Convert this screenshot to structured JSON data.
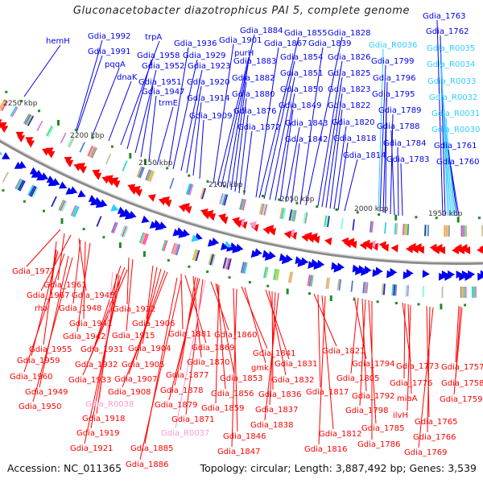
{
  "title": "Gluconacetobacter diazotrophicus PAI 5, complete genome",
  "footer": {
    "accession": "Accession: NC_011365",
    "summary": "Topology: circular; Length: 3,887,492 bp; Genes: 3,539"
  },
  "colors": {
    "forward_gene": "#0000ee",
    "reverse_gene": "#ff0000",
    "rna_forward": "#33ccff",
    "rna_reverse": "#ff99cc",
    "backbone": "#888888",
    "tick_dot": "#228b22"
  },
  "ticks": [
    {
      "kbp": 2250,
      "label": "2250 kbp"
    },
    {
      "kbp": 2200,
      "label": "2200 kbp"
    },
    {
      "kbp": 2150,
      "label": "2150 kbp"
    },
    {
      "kbp": 2100,
      "label": "2100 kbp"
    },
    {
      "kbp": 2050,
      "label": "2050 kbp"
    },
    {
      "kbp": 2000,
      "label": "2000 kbp"
    },
    {
      "kbp": 1950,
      "label": "1950 kbp"
    }
  ],
  "forward_labels": [
    {
      "text": "hemH",
      "type": "gene"
    },
    {
      "text": "Gdia_1992",
      "type": "gene"
    },
    {
      "text": "Gdia_1991",
      "type": "gene"
    },
    {
      "text": "pqqA",
      "type": "gene"
    },
    {
      "text": "dnaK",
      "type": "gene"
    },
    {
      "text": "trpA",
      "type": "gene"
    },
    {
      "text": "Gdia_1958",
      "type": "gene"
    },
    {
      "text": "Gdia_1952",
      "type": "gene"
    },
    {
      "text": "Gdia_1951",
      "type": "gene"
    },
    {
      "text": "Gdia_1947",
      "type": "gene"
    },
    {
      "text": "trmE",
      "type": "gene"
    },
    {
      "text": "Gdia_1936",
      "type": "gene"
    },
    {
      "text": "Gdia_1929",
      "type": "gene"
    },
    {
      "text": "Gdia_1923",
      "type": "gene"
    },
    {
      "text": "Gdia_1920",
      "type": "gene"
    },
    {
      "text": "Gdia_1914",
      "type": "gene"
    },
    {
      "text": "Gdia_1909",
      "type": "gene"
    },
    {
      "text": "Gdia_1901",
      "type": "gene"
    },
    {
      "text": "purH",
      "type": "gene"
    },
    {
      "text": "Gdia_1884",
      "type": "gene"
    },
    {
      "text": "Gdia_1883",
      "type": "gene"
    },
    {
      "text": "Gdia_1882",
      "type": "gene"
    },
    {
      "text": "Gdia_1880",
      "type": "gene"
    },
    {
      "text": "Gdia_1876",
      "type": "gene"
    },
    {
      "text": "Gdia_1872",
      "type": "gene"
    },
    {
      "text": "Gdia_1867",
      "type": "gene"
    },
    {
      "text": "Gdia_1855",
      "type": "gene"
    },
    {
      "text": "Gdia_1854",
      "type": "gene"
    },
    {
      "text": "Gdia_1851",
      "type": "gene"
    },
    {
      "text": "Gdia_1850",
      "type": "gene"
    },
    {
      "text": "Gdia_1849",
      "type": "gene"
    },
    {
      "text": "Gdia_1843",
      "type": "gene"
    },
    {
      "text": "Gdia_1842",
      "type": "gene"
    },
    {
      "text": "Gdia_1828",
      "type": "gene"
    },
    {
      "text": "Gdia_1839",
      "type": "gene"
    },
    {
      "text": "Gdia_1826",
      "type": "gene"
    },
    {
      "text": "Gdia_1825",
      "type": "gene"
    },
    {
      "text": "Gdia_1823",
      "type": "gene"
    },
    {
      "text": "Gdia_1822",
      "type": "gene"
    },
    {
      "text": "Gdia_1820",
      "type": "gene"
    },
    {
      "text": "Gdia_1818",
      "type": "gene"
    },
    {
      "text": "Gdia_1814",
      "type": "gene"
    },
    {
      "text": "Gdia_R0036",
      "type": "rna"
    },
    {
      "text": "Gdia_1799",
      "type": "gene"
    },
    {
      "text": "Gdia_1796",
      "type": "gene"
    },
    {
      "text": "Gdia_1795",
      "type": "gene"
    },
    {
      "text": "Gdia_1789",
      "type": "gene"
    },
    {
      "text": "Gdia_1788",
      "type": "gene"
    },
    {
      "text": "Gdia_1784",
      "type": "gene"
    },
    {
      "text": "Gdia_1783",
      "type": "gene"
    },
    {
      "text": "Gdia_1763",
      "type": "gene"
    },
    {
      "text": "Gdia_1762",
      "type": "gene"
    },
    {
      "text": "Gdia_R0035",
      "type": "rna"
    },
    {
      "text": "Gdia_R0034",
      "type": "rna"
    },
    {
      "text": "Gdia_R0033",
      "type": "rna"
    },
    {
      "text": "Gdia_R0032",
      "type": "rna"
    },
    {
      "text": "Gdia_R0031",
      "type": "rna"
    },
    {
      "text": "Gdia_R0030",
      "type": "rna"
    },
    {
      "text": "Gdia_1761",
      "type": "gene"
    },
    {
      "text": "Gdia_1760",
      "type": "gene"
    }
  ],
  "reverse_labels": [
    {
      "text": "Gdia_1977",
      "type": "gene"
    },
    {
      "text": "Gdia_1961",
      "type": "gene"
    },
    {
      "text": "Gdia_1967",
      "type": "gene"
    },
    {
      "text": "Gdia_1945",
      "type": "gene"
    },
    {
      "text": "rho",
      "type": "gene"
    },
    {
      "text": "Gdia_1948",
      "type": "gene"
    },
    {
      "text": "Gdia_1941",
      "type": "gene"
    },
    {
      "text": "Gdia_1942",
      "type": "gene"
    },
    {
      "text": "Gdia_1955",
      "type": "gene"
    },
    {
      "text": "Gdia_1959",
      "type": "gene"
    },
    {
      "text": "Gdia_1960",
      "type": "gene"
    },
    {
      "text": "Gdia_1949",
      "type": "gene"
    },
    {
      "text": "Gdia_1950",
      "type": "gene"
    },
    {
      "text": "Gdia_1922",
      "type": "gene"
    },
    {
      "text": "Gdia_1915",
      "type": "gene"
    },
    {
      "text": "Gdia_1931",
      "type": "gene"
    },
    {
      "text": "Gdia_1932",
      "type": "gene"
    },
    {
      "text": "Gdia_1933",
      "type": "gene"
    },
    {
      "text": "Gdia_R0038",
      "type": "rna"
    },
    {
      "text": "Gdia_1918",
      "type": "gene"
    },
    {
      "text": "Gdia_1919",
      "type": "gene"
    },
    {
      "text": "Gdia_1921",
      "type": "gene"
    },
    {
      "text": "Gdia_1906",
      "type": "gene"
    },
    {
      "text": "Gdia_1904",
      "type": "gene"
    },
    {
      "text": "Gdia_1905",
      "type": "gene"
    },
    {
      "text": "Gdia_1907",
      "type": "gene"
    },
    {
      "text": "Gdia_1908",
      "type": "gene"
    },
    {
      "text": "Gdia_1885",
      "type": "gene"
    },
    {
      "text": "Gdia_1886",
      "type": "gene"
    },
    {
      "text": "Gdia_1881",
      "type": "gene"
    },
    {
      "text": "Gdia_1869",
      "type": "gene"
    },
    {
      "text": "Gdia_1870",
      "type": "gene"
    },
    {
      "text": "Gdia_1877",
      "type": "gene"
    },
    {
      "text": "Gdia_1878",
      "type": "gene"
    },
    {
      "text": "Gdia_1879",
      "type": "gene"
    },
    {
      "text": "Gdia_1871",
      "type": "gene"
    },
    {
      "text": "Gdia_R0037",
      "type": "rna"
    },
    {
      "text": "Gdia_1860",
      "type": "gene"
    },
    {
      "text": "Gdia_1853",
      "type": "gene"
    },
    {
      "text": "Gdia_1856",
      "type": "gene"
    },
    {
      "text": "Gdia_1859",
      "type": "gene"
    },
    {
      "text": "Gdia_1841",
      "type": "gene"
    },
    {
      "text": "gmk",
      "type": "gene"
    },
    {
      "text": "Gdia_1846",
      "type": "gene"
    },
    {
      "text": "Gdia_1847",
      "type": "gene"
    },
    {
      "text": "Gdia_1831",
      "type": "gene"
    },
    {
      "text": "Gdia_1832",
      "type": "gene"
    },
    {
      "text": "Gdia_1836",
      "type": "gene"
    },
    {
      "text": "Gdia_1837",
      "type": "gene"
    },
    {
      "text": "Gdia_1838",
      "type": "gene"
    },
    {
      "text": "Gdia_1821",
      "type": "gene"
    },
    {
      "text": "Gdia_1817",
      "type": "gene"
    },
    {
      "text": "Gdia_1812",
      "type": "gene"
    },
    {
      "text": "Gdia_1816",
      "type": "gene"
    },
    {
      "text": "Gdia_1794",
      "type": "gene"
    },
    {
      "text": "Gdia_1805",
      "type": "gene"
    },
    {
      "text": "Gdia_1792",
      "type": "gene"
    },
    {
      "text": "Gdia_1798",
      "type": "gene"
    },
    {
      "text": "Gdia_1785",
      "type": "gene"
    },
    {
      "text": "Gdia_1786",
      "type": "gene"
    },
    {
      "text": "Gdia_1773",
      "type": "gene"
    },
    {
      "text": "Gdia_1776",
      "type": "gene"
    },
    {
      "text": "miaA",
      "type": "gene"
    },
    {
      "text": "ilvH",
      "type": "gene"
    },
    {
      "text": "Gdia_1765",
      "type": "gene"
    },
    {
      "text": "Gdia_1766",
      "type": "gene"
    },
    {
      "text": "Gdia_1769",
      "type": "gene"
    },
    {
      "text": "Gdia_1757",
      "type": "gene"
    },
    {
      "text": "Gdia_1758",
      "type": "gene"
    },
    {
      "text": "Gdia_1759",
      "type": "gene"
    }
  ]
}
